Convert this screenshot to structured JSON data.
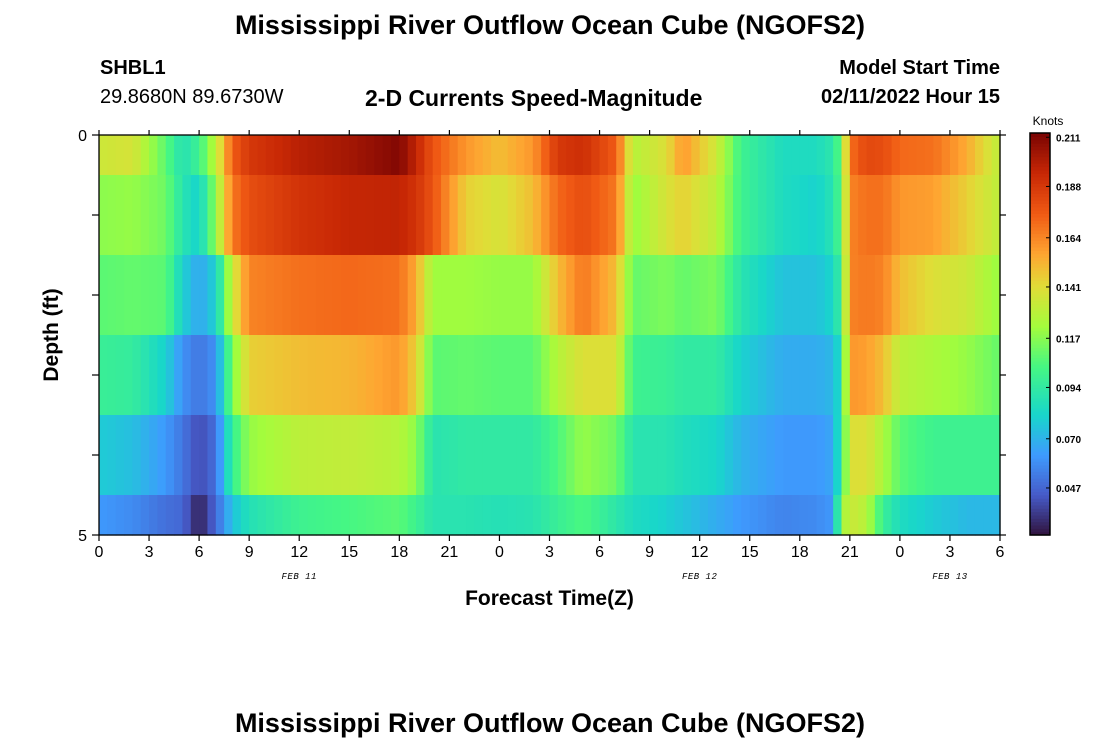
{
  "header": {
    "title": "Mississippi River Outflow Ocean Cube (NGOFS2)",
    "station_id": "SHBL1",
    "station_coords": "29.8680N  89.6730W",
    "plot_title": "2-D Currents Speed-Magnitude",
    "start_label": "Model Start Time",
    "start_value": "02/11/2022 Hour 15"
  },
  "footer": {
    "title": "Mississippi River Outflow Ocean Cube (NGOFS2)"
  },
  "chart_data": {
    "type": "heatmap",
    "title": "2-D Currents Speed-Magnitude",
    "xlabel": "Forecast Time(Z)",
    "ylabel": "Depth (ft)",
    "x_range_hours": [
      0,
      54
    ],
    "y_range_ft": [
      0,
      5
    ],
    "x_tick_labels": [
      "0",
      "3",
      "6",
      "9",
      "12",
      "15",
      "18",
      "21",
      "0",
      "3",
      "6",
      "9",
      "12",
      "15",
      "18",
      "21",
      "0",
      "3",
      "6"
    ],
    "y_tick_labels": [
      "0",
      "5"
    ],
    "date_labels": [
      {
        "label": "FEB 11",
        "hour": 12
      },
      {
        "label": "FEB 12",
        "hour": 36
      },
      {
        "label": "FEB 13",
        "hour": 51
      }
    ],
    "colorbar": {
      "unit": "Knots",
      "tick_labels": [
        "0.211",
        "0.188",
        "0.164",
        "0.141",
        "0.117",
        "0.094",
        "0.070",
        "0.047"
      ],
      "tick_values": [
        0.211,
        0.188,
        0.164,
        0.141,
        0.117,
        0.094,
        0.07,
        0.047
      ],
      "range": [
        0.025,
        0.213
      ]
    },
    "depth_levels": [
      "0-0.5",
      "0.5-1.5",
      "1.5-2.5",
      "2.5-3.5",
      "3.5-4.5",
      "4.5-5"
    ],
    "keyframes": [
      {
        "hour": 0,
        "layers": [
          0.135,
          0.118,
          0.108,
          0.098,
          0.078,
          0.062
        ]
      },
      {
        "hour": 2,
        "layers": [
          0.138,
          0.12,
          0.11,
          0.096,
          0.074,
          0.058
        ]
      },
      {
        "hour": 4,
        "layers": [
          0.108,
          0.112,
          0.108,
          0.08,
          0.062,
          0.05
        ]
      },
      {
        "hour": 5,
        "layers": [
          0.088,
          0.09,
          0.08,
          0.06,
          0.052,
          0.048
        ]
      },
      {
        "hour": 6,
        "layers": [
          0.1,
          0.08,
          0.066,
          0.052,
          0.04,
          0.028
        ]
      },
      {
        "hour": 7,
        "layers": [
          0.13,
          0.12,
          0.08,
          0.06,
          0.05,
          0.048
        ]
      },
      {
        "hour": 8,
        "layers": [
          0.175,
          0.168,
          0.135,
          0.115,
          0.098,
          0.075
        ]
      },
      {
        "hour": 9,
        "layers": [
          0.188,
          0.18,
          0.165,
          0.145,
          0.12,
          0.088
        ]
      },
      {
        "hour": 12,
        "layers": [
          0.198,
          0.19,
          0.17,
          0.15,
          0.13,
          0.1
        ]
      },
      {
        "hour": 15,
        "layers": [
          0.203,
          0.195,
          0.172,
          0.152,
          0.132,
          0.104
        ]
      },
      {
        "hour": 18,
        "layers": [
          0.211,
          0.196,
          0.17,
          0.16,
          0.128,
          0.108
        ]
      },
      {
        "hour": 19,
        "layers": [
          0.196,
          0.19,
          0.155,
          0.145,
          0.118,
          0.1
        ]
      },
      {
        "hour": 20,
        "layers": [
          0.178,
          0.178,
          0.122,
          0.108,
          0.09,
          0.09
        ]
      },
      {
        "hour": 22,
        "layers": [
          0.16,
          0.145,
          0.122,
          0.11,
          0.094,
          0.09
        ]
      },
      {
        "hour": 24,
        "layers": [
          0.15,
          0.138,
          0.12,
          0.108,
          0.094,
          0.088
        ]
      },
      {
        "hour": 26,
        "layers": [
          0.16,
          0.15,
          0.12,
          0.108,
          0.094,
          0.09
        ]
      },
      {
        "hour": 27.5,
        "layers": [
          0.188,
          0.172,
          0.15,
          0.128,
          0.105,
          0.098
        ]
      },
      {
        "hour": 29,
        "layers": [
          0.192,
          0.18,
          0.168,
          0.14,
          0.12,
          0.105
        ]
      },
      {
        "hour": 31,
        "layers": [
          0.175,
          0.168,
          0.15,
          0.14,
          0.112,
          0.092
        ]
      },
      {
        "hour": 32,
        "layers": [
          0.128,
          0.12,
          0.11,
          0.1,
          0.09,
          0.085
        ]
      },
      {
        "hour": 34,
        "layers": [
          0.14,
          0.138,
          0.115,
          0.098,
          0.09,
          0.08
        ]
      },
      {
        "hour": 35,
        "layers": [
          0.16,
          0.145,
          0.11,
          0.094,
          0.086,
          0.076
        ]
      },
      {
        "hour": 37,
        "layers": [
          0.135,
          0.13,
          0.115,
          0.095,
          0.082,
          0.068
        ]
      },
      {
        "hour": 38.5,
        "layers": [
          0.1,
          0.1,
          0.09,
          0.08,
          0.07,
          0.062
        ]
      },
      {
        "hour": 41,
        "layers": [
          0.085,
          0.085,
          0.075,
          0.068,
          0.062,
          0.056
        ]
      },
      {
        "hour": 43,
        "layers": [
          0.085,
          0.08,
          0.075,
          0.068,
          0.062,
          0.058
        ]
      },
      {
        "hour": 44,
        "layers": [
          0.092,
          0.09,
          0.082,
          0.072,
          0.066,
          0.062
        ]
      },
      {
        "hour": 44.5,
        "layers": [
          0.112,
          0.108,
          0.1,
          0.088,
          0.096,
          0.12
        ]
      },
      {
        "hour": 45,
        "layers": [
          0.17,
          0.165,
          0.165,
          0.16,
          0.14,
          0.135
        ]
      },
      {
        "hour": 46,
        "layers": [
          0.182,
          0.17,
          0.168,
          0.158,
          0.14,
          0.128
        ]
      },
      {
        "hour": 47,
        "layers": [
          0.18,
          0.17,
          0.165,
          0.15,
          0.125,
          0.098
        ]
      },
      {
        "hour": 48,
        "layers": [
          0.172,
          0.16,
          0.15,
          0.13,
          0.108,
          0.085
        ]
      },
      {
        "hour": 50,
        "layers": [
          0.17,
          0.158,
          0.14,
          0.125,
          0.1,
          0.078
        ]
      },
      {
        "hour": 52,
        "layers": [
          0.155,
          0.145,
          0.135,
          0.12,
          0.1,
          0.072
        ]
      },
      {
        "hour": 54,
        "layers": [
          0.13,
          0.13,
          0.12,
          0.11,
          0.1,
          0.072
        ]
      }
    ]
  }
}
